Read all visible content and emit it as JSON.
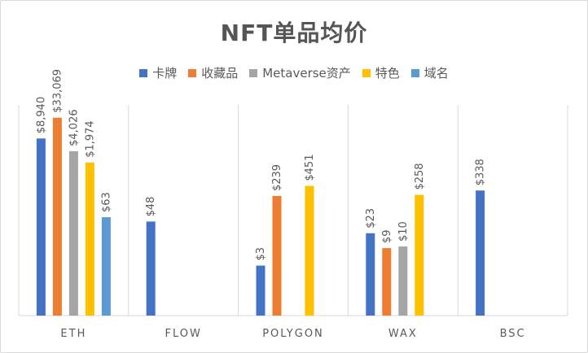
{
  "chart_data": {
    "type": "bar",
    "title": "NFT单品均价",
    "xlabel": "",
    "ylabel": "",
    "legend_position": "top",
    "grid": "vertical category separators",
    "categories": [
      "ETH",
      "FLOW",
      "POLYGON",
      "WAX",
      "BSC"
    ],
    "series": [
      {
        "name": "卡牌",
        "color": "#4472C4",
        "values": [
          8940,
          48,
          3,
          23,
          338
        ],
        "labels": [
          "$8,940",
          "$48",
          "$3",
          "$23",
          "$338"
        ]
      },
      {
        "name": "收藏品",
        "color": "#ED7D31",
        "values": [
          33069,
          null,
          239,
          9,
          null
        ],
        "labels": [
          "$33,069",
          null,
          "$239",
          "$9",
          null
        ]
      },
      {
        "name": "Metaverse资产",
        "color": "#A5A5A5",
        "values": [
          4026,
          null,
          null,
          10,
          null
        ],
        "labels": [
          "$4,026",
          null,
          null,
          "$10",
          null
        ]
      },
      {
        "name": "特色",
        "color": "#FFC000",
        "values": [
          1974,
          null,
          451,
          258,
          null
        ],
        "labels": [
          "$1,974",
          null,
          "$451",
          "$258",
          null
        ]
      },
      {
        "name": "域名",
        "color": "#5B9BD5",
        "values": [
          63,
          null,
          null,
          null,
          null
        ],
        "labels": [
          "$63",
          null,
          null,
          null,
          null
        ]
      }
    ],
    "scale": "log"
  }
}
